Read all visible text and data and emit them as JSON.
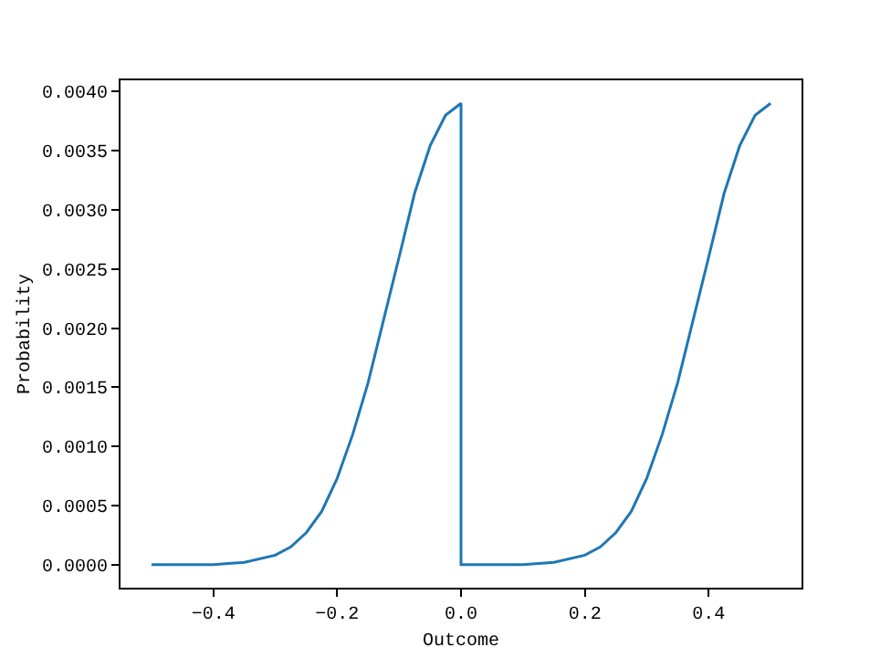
{
  "chart_data": {
    "type": "line",
    "xlabel": "Outcome",
    "ylabel": "Probability",
    "x": [
      -0.5,
      -0.45,
      -0.4,
      -0.35,
      -0.3,
      -0.275,
      -0.25,
      -0.225,
      -0.2,
      -0.175,
      -0.15,
      -0.125,
      -0.1,
      -0.075,
      -0.05,
      -0.025,
      0,
      0,
      0.05,
      0.1,
      0.15,
      0.2,
      0.225,
      0.25,
      0.275,
      0.3,
      0.325,
      0.35,
      0.375,
      0.4,
      0.425,
      0.45,
      0.475,
      0.5
    ],
    "series": [
      {
        "color": "#1f77b4",
        "values": [
          0,
          0,
          0,
          2e-05,
          8e-05,
          0.00015,
          0.00027,
          0.00045,
          0.00073,
          0.0011,
          0.00154,
          0.00207,
          0.0026,
          0.00314,
          0.00354,
          0.0038,
          0.0039,
          0,
          0,
          0,
          2e-05,
          8e-05,
          0.00015,
          0.00027,
          0.00045,
          0.00073,
          0.0011,
          0.00154,
          0.00207,
          0.0026,
          0.00314,
          0.00354,
          0.0038,
          0.0039
        ]
      }
    ],
    "xlim": [
      -0.55,
      0.55
    ],
    "xticks": [
      {
        "value": -0.4,
        "label": "−0.4"
      },
      {
        "value": -0.2,
        "label": "−0.2"
      },
      {
        "value": 0,
        "label": "0.0"
      },
      {
        "value": 0.2,
        "label": "0.2"
      },
      {
        "value": 0.4,
        "label": "0.4"
      }
    ],
    "ylim": [
      -0.000195,
      0.004095
    ],
    "yticks": [
      {
        "value": 0,
        "label": "0.0000"
      },
      {
        "value": 0.0005,
        "label": "0.0005"
      },
      {
        "value": 0.001,
        "label": "0.0010"
      },
      {
        "value": 0.0015,
        "label": "0.0015"
      },
      {
        "value": 0.002,
        "label": "0.0020"
      },
      {
        "value": 0.0025,
        "label": "0.0025"
      },
      {
        "value": 0.003,
        "label": "0.0030"
      },
      {
        "value": 0.0035,
        "label": "0.0035"
      },
      {
        "value": 0.004,
        "label": "0.0040"
      }
    ],
    "grid": false
  }
}
